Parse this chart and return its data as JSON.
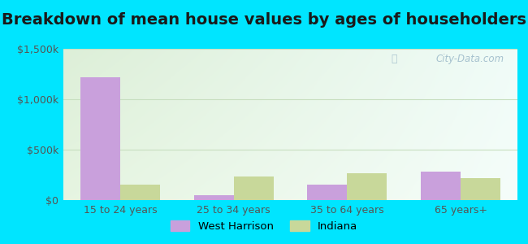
{
  "title": "Breakdown of mean house values by ages of householders",
  "categories": [
    "15 to 24 years",
    "25 to 34 years",
    "35 to 64 years",
    "65 years+"
  ],
  "west_harrison": [
    1220000,
    45000,
    155000,
    285000
  ],
  "indiana": [
    155000,
    235000,
    265000,
    220000
  ],
  "west_harrison_color": "#c9a0dc",
  "indiana_color": "#c8d89a",
  "ylim": [
    0,
    1500000
  ],
  "yticks": [
    0,
    500000,
    1000000,
    1500000
  ],
  "ytick_labels": [
    "$0",
    "$500k",
    "$1,000k",
    "$1,500k"
  ],
  "bar_width": 0.35,
  "background_outer": "#00e5ff",
  "background_inner_left_top": "#ddefd8",
  "background_inner_right_bottom": "#eef8f5",
  "grid_color": "#c8dfc0",
  "title_fontsize": 14,
  "legend_labels": [
    "West Harrison",
    "Indiana"
  ],
  "watermark": "City-Data.com",
  "tick_color": "#555555",
  "tick_fontsize": 9
}
